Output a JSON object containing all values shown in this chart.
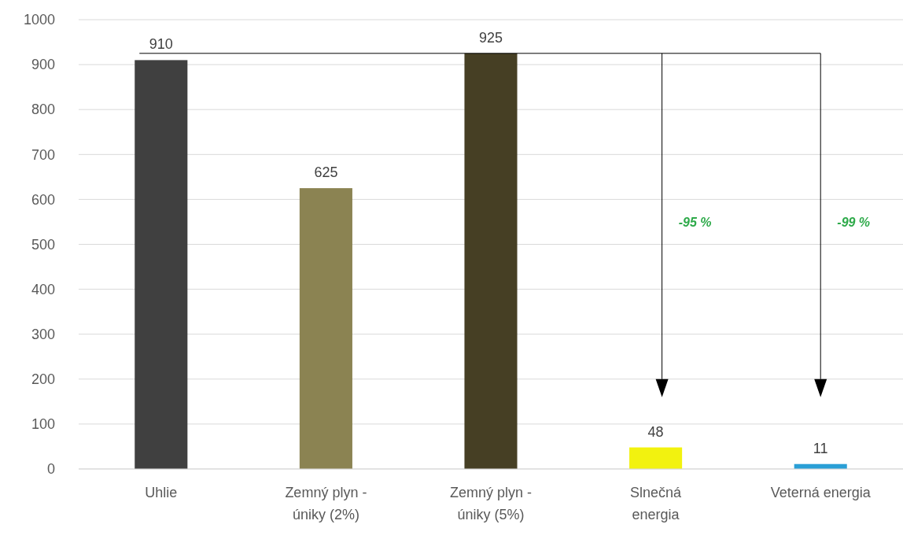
{
  "chart_data": {
    "type": "bar",
    "categories": [
      "Uhlie",
      "Zemný plyn - úniky (2%)",
      "Zemný plyn - úniky (5%)",
      "Slnečná energia",
      "Veterná energia"
    ],
    "values": [
      910,
      625,
      925,
      48,
      11
    ],
    "colors": [
      "#404040",
      "#8b8352",
      "#463f24",
      "#f2f20f",
      "#2a9fd6"
    ],
    "ylim": [
      0,
      1000
    ],
    "yticks": [
      0,
      100,
      200,
      300,
      400,
      500,
      600,
      700,
      800,
      900,
      1000
    ],
    "grid": "y",
    "data_labels": true,
    "ref_lines": [
      {
        "axis": "y",
        "value": 925,
        "color": "#000000"
      }
    ],
    "annotations": [
      "-95 %",
      "-99 %"
    ]
  }
}
